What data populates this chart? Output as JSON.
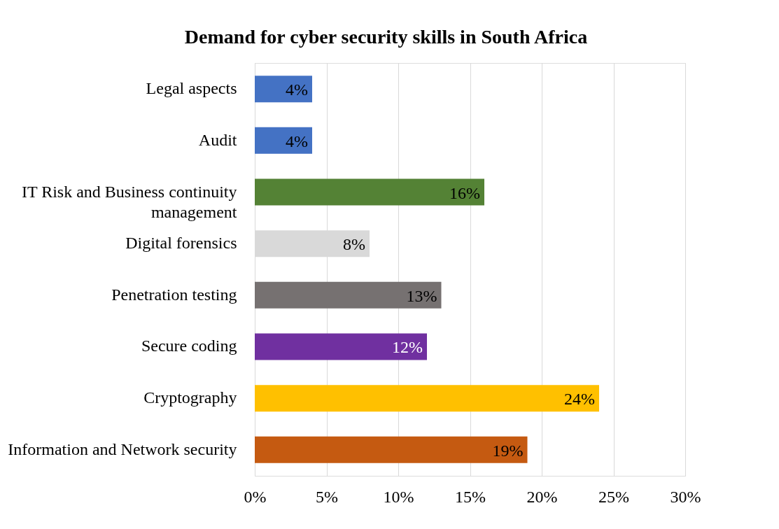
{
  "chart_data": {
    "type": "bar",
    "orientation": "horizontal",
    "title": "Demand for cyber security skills in South Africa",
    "categories": [
      "Legal aspects",
      "Audit",
      "IT Risk and Business continuity management",
      "Digital forensics",
      "Penetration testing",
      "Secure coding",
      "Cryptography",
      "Information and Network security"
    ],
    "values": [
      4,
      4,
      16,
      8,
      13,
      12,
      24,
      19
    ],
    "colors": [
      "#4472c4",
      "#4472c4",
      "#548235",
      "#d9d9d9",
      "#767171",
      "#7030a0",
      "#ffc000",
      "#c55a11"
    ],
    "value_labels": [
      "4%",
      "4%",
      "16%",
      "8%",
      "13%",
      "12%",
      "24%",
      "19%"
    ],
    "xlim": [
      0,
      30
    ],
    "xticks": [
      {
        "value": 0,
        "label": "0%"
      },
      {
        "value": 5,
        "label": "5%"
      },
      {
        "value": 10,
        "label": "10%"
      },
      {
        "value": 15,
        "label": "15%"
      },
      {
        "value": 20,
        "label": "20%"
      },
      {
        "value": 25,
        "label": "25%"
      },
      {
        "value": 30,
        "label": "30%"
      }
    ],
    "grid": "x"
  }
}
